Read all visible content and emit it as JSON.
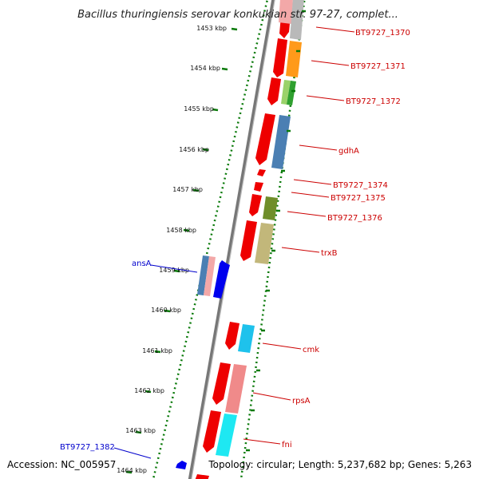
{
  "title": "Bacillus thuringiensis serovar konkukian str. 97-27, complet...",
  "footer": {
    "accession": "Accession: NC_005957",
    "topology": "Topology: circular; Length: 5,237,682 bp; Genes: 5,263"
  },
  "colors": {
    "backbone": "#7a7a7a",
    "tick": "#0a7a0a",
    "forward_label": "#cc0000",
    "reverse_label": "#0000cc"
  },
  "ticks": [
    "1453 kbp",
    "1454 kbp",
    "1455 kbp",
    "1456 kbp",
    "1457 kbp",
    "1458 kbp",
    "1459 kbp",
    "1460 kbp",
    "1461 kbp",
    "1462 kbp",
    "1463 kbp",
    "1464 kbp"
  ],
  "gene_labels": [
    {
      "text": "BT9727_1370",
      "strand": "forward"
    },
    {
      "text": "BT9727_1371",
      "strand": "forward"
    },
    {
      "text": "BT9727_1372",
      "strand": "forward"
    },
    {
      "text": "gdhA",
      "strand": "forward"
    },
    {
      "text": "BT9727_1374",
      "strand": "forward"
    },
    {
      "text": "BT9727_1375",
      "strand": "forward"
    },
    {
      "text": "BT9727_1376",
      "strand": "forward"
    },
    {
      "text": "trxB",
      "strand": "forward"
    },
    {
      "text": "ansA",
      "strand": "reverse"
    },
    {
      "text": "cmk",
      "strand": "forward"
    },
    {
      "text": "rpsA",
      "strand": "forward"
    },
    {
      "text": "fni",
      "strand": "forward"
    },
    {
      "text": "BT9727_1382",
      "strand": "reverse"
    }
  ]
}
